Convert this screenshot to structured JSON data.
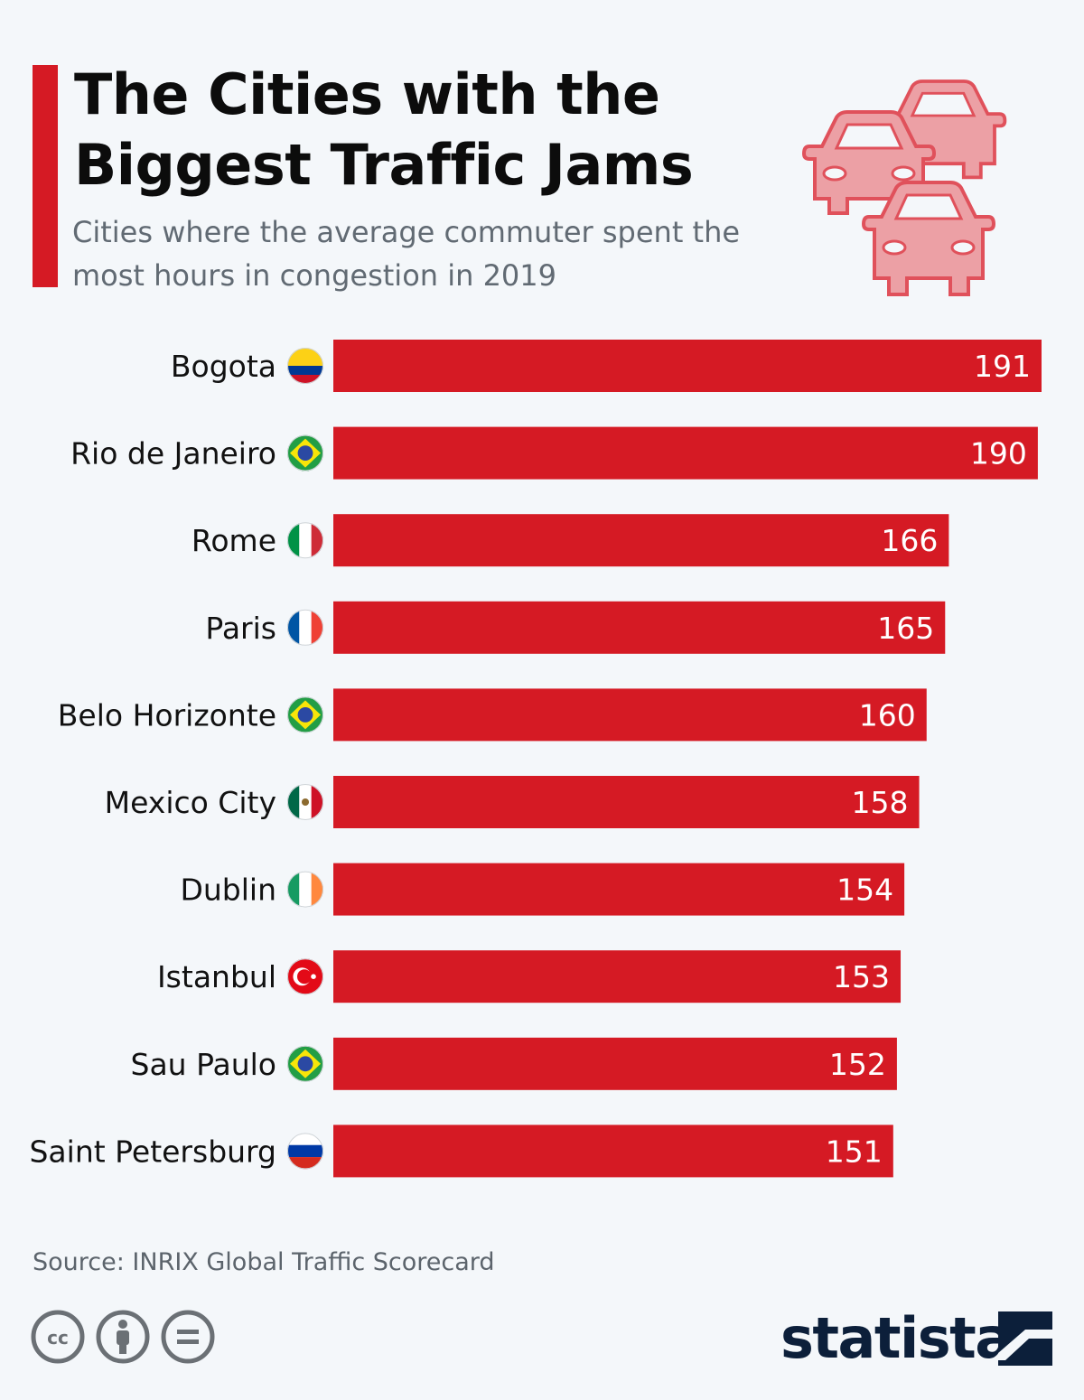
{
  "header": {
    "title": "The Cities with the Biggest Traffic Jams",
    "subtitle": "Cities where the average commuter spent the most hours in congestion in 2019"
  },
  "chart_data": {
    "type": "bar",
    "orientation": "horizontal",
    "title": "The Cities with the Biggest Traffic Jams",
    "subtitle": "Cities where the average commuter spent the most hours in congestion in 2019",
    "categories": [
      "Bogota",
      "Rio de Janeiro",
      "Rome",
      "Paris",
      "Belo Horizonte",
      "Mexico City",
      "Dublin",
      "Istanbul",
      "Sau Paulo",
      "Saint Petersburg"
    ],
    "values": [
      191,
      190,
      166,
      165,
      160,
      158,
      154,
      153,
      152,
      151
    ],
    "flags": [
      "colombia",
      "brazil",
      "italy",
      "france",
      "brazil",
      "mexico",
      "ireland",
      "turkey",
      "brazil",
      "russia"
    ],
    "xlim": [
      0,
      191
    ],
    "grid": false,
    "legend": "none",
    "bar_color": "#d51a24",
    "value_label_color": "#ffffff"
  },
  "footer": {
    "source": "Source: INRIX Global Traffic Scorecard",
    "brand": "statista",
    "license_icons": [
      "creative-commons-icon",
      "attribution-icon",
      "no-derivatives-icon"
    ]
  },
  "colors": {
    "background": "#f4f7fa",
    "accent": "#d51a24",
    "title": "#0c0c0c",
    "subtitle": "#616a73",
    "brand": "#0c1f3a",
    "car_fill": "#eca0a5",
    "car_stroke": "#e0515b"
  }
}
